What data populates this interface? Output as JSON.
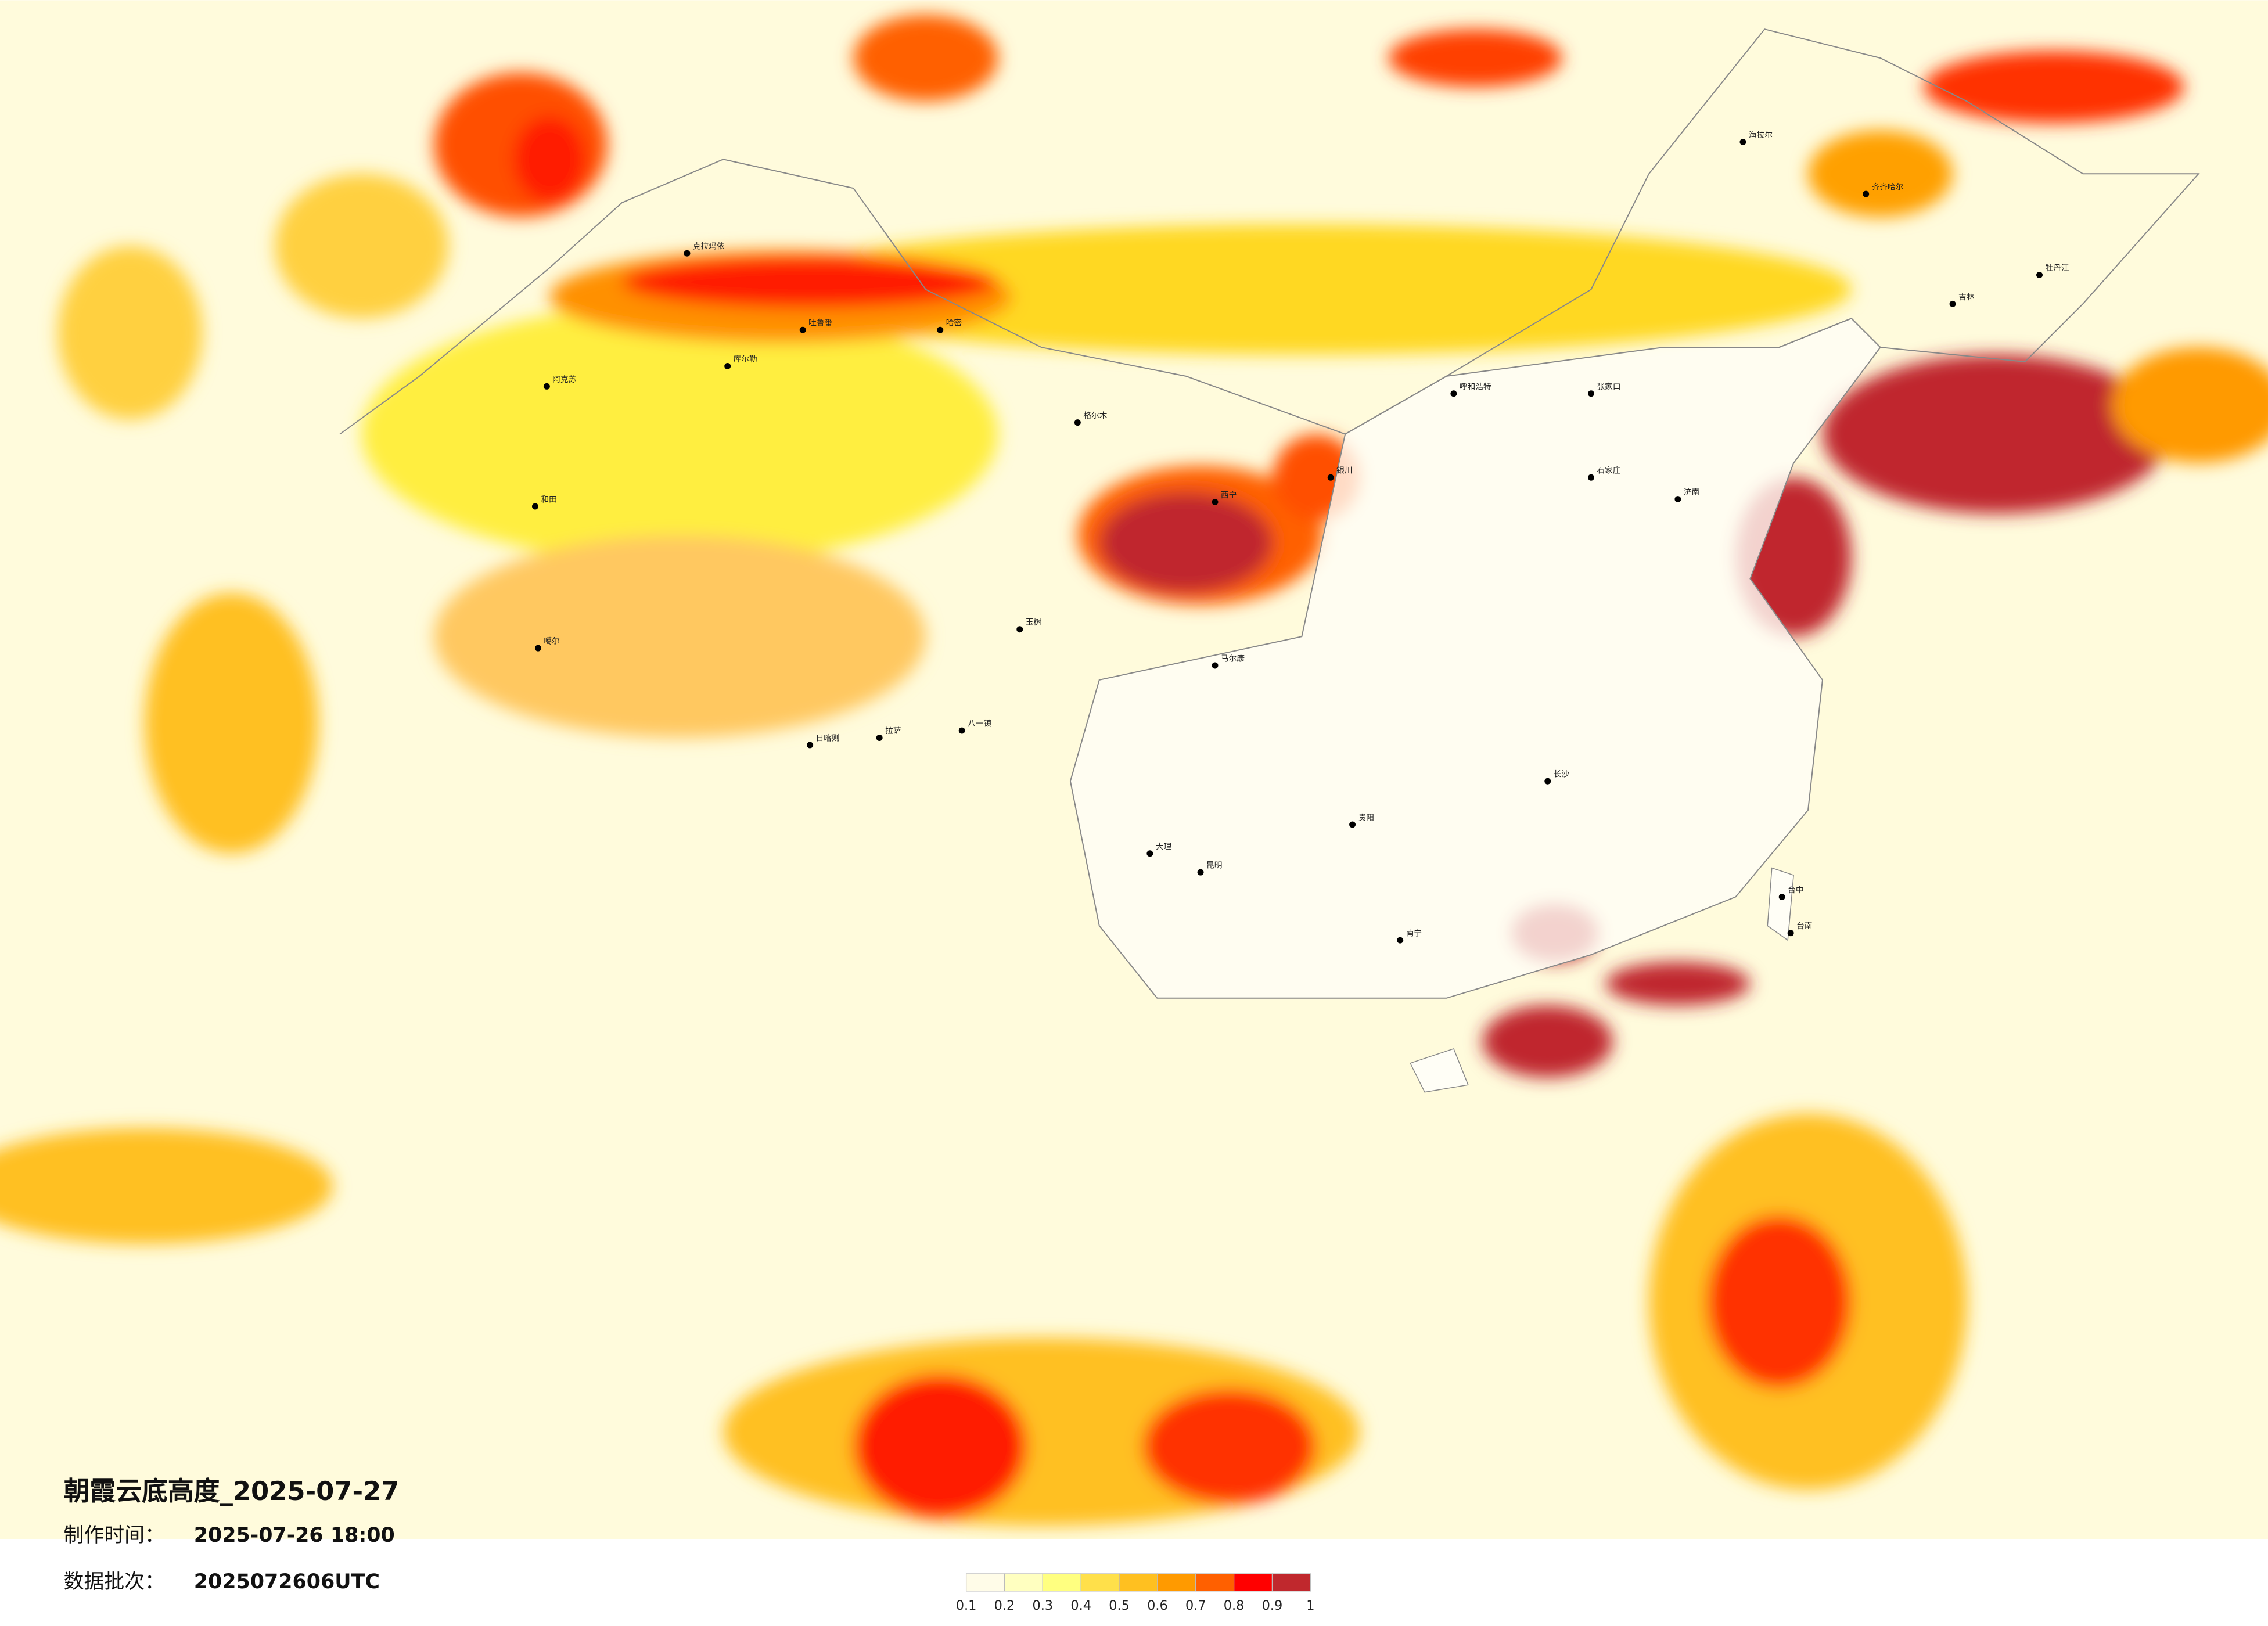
{
  "title": "朝霞云底高度_2025-07-27",
  "info": [
    {
      "label": "制作时间：",
      "value": "2025-07-26 18:00"
    },
    {
      "label": "数据批次：",
      "value": "2025072606UTC"
    }
  ],
  "legend": {
    "ticks": [
      0.1,
      0.2,
      0.3,
      0.4,
      0.5,
      0.6,
      0.7,
      0.8,
      0.9,
      1
    ],
    "colors": [
      "#fffce8",
      "#ffffc0",
      "#ffff80",
      "#ffe04a",
      "#ffc020",
      "#ff9a00",
      "#ff6000",
      "#ff0000",
      "#c0282d"
    ]
  },
  "cities": [
    "克拉玛依",
    "库尔勒",
    "阿克苏",
    "和田",
    "哈密",
    "吐鲁番",
    "噶尔",
    "日喀则",
    "拉萨",
    "八一镇",
    "格尔木",
    "玉树",
    "马尔康",
    "呼和浩特",
    "张家口",
    "石家庄",
    "海拉尔",
    "齐齐哈尔",
    "牡丹江",
    "吉林",
    "长沙",
    "南宁",
    "昆明",
    "贵阳",
    "大理",
    "台中",
    "台南",
    "银川",
    "西宁",
    "济南"
  ]
}
